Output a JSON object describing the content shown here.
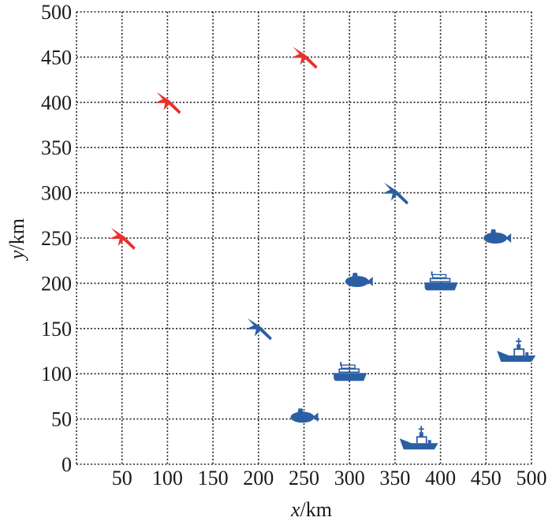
{
  "chart_data": {
    "type": "scatter",
    "title": "",
    "xlabel": {
      "var": "x",
      "unit": "/km"
    },
    "ylabel": {
      "var": "y",
      "unit": "/km"
    },
    "xlim": [
      0,
      500
    ],
    "ylim": [
      0,
      500
    ],
    "x_ticks": [
      50,
      100,
      150,
      200,
      250,
      300,
      350,
      400,
      450,
      500
    ],
    "y_ticks": [
      0,
      50,
      100,
      150,
      200,
      250,
      300,
      350,
      400,
      450,
      500
    ],
    "grid": true,
    "legend": "none",
    "colors": {
      "red": "#e8312c",
      "blue": "#2b5fa3"
    },
    "points": [
      {
        "kind": "aircraft",
        "color": "red",
        "x": 50,
        "y": 250
      },
      {
        "kind": "aircraft",
        "color": "red",
        "x": 100,
        "y": 400
      },
      {
        "kind": "aircraft",
        "color": "red",
        "x": 250,
        "y": 450
      },
      {
        "kind": "aircraft",
        "color": "blue",
        "x": 200,
        "y": 150
      },
      {
        "kind": "aircraft",
        "color": "blue",
        "x": 350,
        "y": 300
      },
      {
        "kind": "submarine",
        "color": "blue",
        "x": 250,
        "y": 52
      },
      {
        "kind": "submarine",
        "color": "blue",
        "x": 310,
        "y": 202
      },
      {
        "kind": "submarine",
        "color": "blue",
        "x": 462,
        "y": 250
      },
      {
        "kind": "cruise-ship",
        "color": "blue",
        "x": 300,
        "y": 100
      },
      {
        "kind": "cruise-ship",
        "color": "blue",
        "x": 400,
        "y": 200
      },
      {
        "kind": "warship",
        "color": "blue",
        "x": 375,
        "y": 25
      },
      {
        "kind": "warship",
        "color": "blue",
        "x": 482,
        "y": 122
      }
    ]
  }
}
